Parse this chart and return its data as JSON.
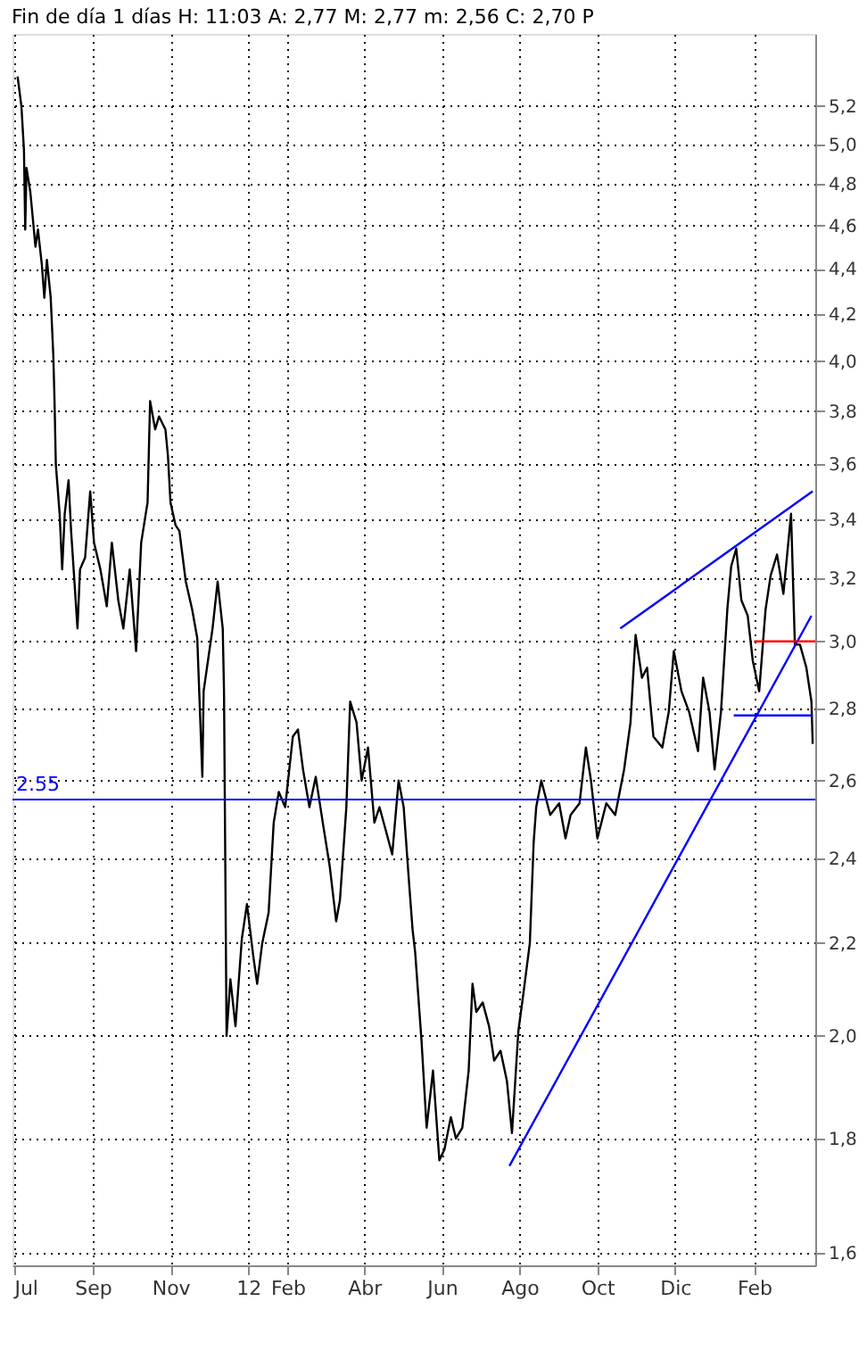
{
  "chart_data": {
    "type": "line",
    "title": "Fin de día 1 días  H: 11:03  A: 2,77  M: 2,77  m: 2,56  C: 2,70  P",
    "xlim": [
      "2011-06-30",
      "2013-03-21"
    ],
    "xticks": [
      {
        "value": "2011-07-01",
        "label": "Jul"
      },
      {
        "value": "2011-09-01",
        "label": "Sep"
      },
      {
        "value": "2011-11-01",
        "label": "Nov"
      },
      {
        "value": "2012-01-01",
        "label": "12"
      },
      {
        "value": "2012-02-01",
        "label": "Feb"
      },
      {
        "value": "2012-04-01",
        "label": "Abr"
      },
      {
        "value": "2012-06-01",
        "label": "Jun"
      },
      {
        "value": "2012-08-01",
        "label": "Ago"
      },
      {
        "value": "2012-10-01",
        "label": "Oct"
      },
      {
        "value": "2012-12-01",
        "label": "Dic"
      },
      {
        "value": "2013-02-01",
        "label": "Feb"
      }
    ],
    "ylim": [
      1.58,
      5.6
    ],
    "log": true,
    "yticks": [
      {
        "value": 1.6,
        "label": "1,6"
      },
      {
        "value": 1.8,
        "label": "1,8"
      },
      {
        "value": 2.0,
        "label": "2,0"
      },
      {
        "value": 2.2,
        "label": "2,2"
      },
      {
        "value": 2.4,
        "label": "2,4"
      },
      {
        "value": 2.6,
        "label": "2,6"
      },
      {
        "value": 2.8,
        "label": "2,8"
      },
      {
        "value": 3.0,
        "label": "3,0"
      },
      {
        "value": 3.2,
        "label": "3,2"
      },
      {
        "value": 3.4,
        "label": "3,4"
      },
      {
        "value": 3.6,
        "label": "3,6"
      },
      {
        "value": 3.8,
        "label": "3,8"
      },
      {
        "value": 4.0,
        "label": "4,0"
      },
      {
        "value": 4.2,
        "label": "4,2"
      },
      {
        "value": 4.4,
        "label": "4,4"
      },
      {
        "value": 4.6,
        "label": "4,6"
      },
      {
        "value": 4.8,
        "label": "4,8"
      },
      {
        "value": 5.0,
        "label": "5,0"
      },
      {
        "value": 5.2,
        "label": "5,2"
      }
    ],
    "grid": true,
    "line_style": "solid",
    "marker": "none",
    "ref_lines": [
      {
        "axis": "y",
        "value": 2.55,
        "label": "2.55",
        "color": "#0000ff"
      }
    ],
    "series": [
      {
        "color": "#000000",
        "x": [
          "2011-07-04",
          "2011-07-07",
          "2011-07-09",
          "2011-07-10",
          "2011-07-11",
          "2011-07-14",
          "2011-07-16",
          "2011-07-18",
          "2011-07-20",
          "2011-07-23",
          "2011-07-25",
          "2011-07-27",
          "2011-07-30",
          "2011-08-01",
          "2011-08-02",
          "2011-08-03",
          "2011-08-06",
          "2011-08-08",
          "2011-08-10",
          "2011-08-13",
          "2011-08-15",
          "2011-08-17",
          "2011-08-20",
          "2011-08-22",
          "2011-08-26",
          "2011-08-30",
          "2011-09-02",
          "2011-09-07",
          "2011-09-12",
          "2011-09-16",
          "2011-09-21",
          "2011-09-25",
          "2011-09-30",
          "2011-10-05",
          "2011-10-09",
          "2011-10-14",
          "2011-10-16",
          "2011-10-20",
          "2011-10-23",
          "2011-10-28",
          "2011-10-30",
          "2011-11-01",
          "2011-11-05",
          "2011-11-08",
          "2011-11-13",
          "2011-11-18",
          "2011-11-22",
          "2011-11-26",
          "2011-11-27",
          "2011-12-04",
          "2011-12-08",
          "2011-12-12",
          "2011-12-13",
          "2011-12-15",
          "2011-12-18",
          "2011-12-22",
          "2011-12-27",
          "2011-12-31",
          "2012-01-05",
          "2012-01-08",
          "2012-01-12",
          "2012-01-17",
          "2012-01-21",
          "2012-01-25",
          "2012-01-30",
          "2012-02-05",
          "2012-02-09",
          "2012-02-13",
          "2012-02-18",
          "2012-02-23",
          "2012-02-29",
          "2012-03-05",
          "2012-03-10",
          "2012-03-13",
          "2012-03-18",
          "2012-03-21",
          "2012-03-26",
          "2012-03-30",
          "2012-04-04",
          "2012-04-09",
          "2012-04-13",
          "2012-04-18",
          "2012-04-23",
          "2012-04-28",
          "2012-05-02",
          "2012-05-06",
          "2012-05-09",
          "2012-05-11",
          "2012-05-16",
          "2012-05-20",
          "2012-05-25",
          "2012-05-30",
          "2012-06-03",
          "2012-06-08",
          "2012-06-12",
          "2012-06-17",
          "2012-06-22",
          "2012-06-25",
          "2012-06-28",
          "2012-07-03",
          "2012-07-08",
          "2012-07-12",
          "2012-07-17",
          "2012-07-22",
          "2012-07-26",
          "2012-07-31",
          "2012-08-04",
          "2012-08-09",
          "2012-08-12",
          "2012-08-14",
          "2012-08-18",
          "2012-08-25",
          "2012-09-01",
          "2012-09-06",
          "2012-09-10",
          "2012-09-17",
          "2012-09-22",
          "2012-09-26",
          "2012-10-01",
          "2012-10-08",
          "2012-10-15",
          "2012-10-22",
          "2012-10-27",
          "2012-10-31",
          "2012-11-05",
          "2012-11-09",
          "2012-11-14",
          "2012-11-21",
          "2012-11-26",
          "2012-11-30",
          "2012-12-06",
          "2012-12-12",
          "2012-12-19",
          "2012-12-23",
          "2012-12-28",
          "2013-01-01",
          "2013-01-06",
          "2013-01-11",
          "2013-01-14",
          "2013-01-18",
          "2013-01-22",
          "2013-01-27",
          "2013-01-31",
          "2013-02-05",
          "2013-02-10",
          "2013-02-14",
          "2013-02-19",
          "2013-02-24",
          "2013-03-02",
          "2013-03-05",
          "2013-03-09",
          "2013-03-14",
          "2013-03-18",
          "2013-03-19"
        ],
        "values": [
          5.36,
          5.2,
          4.97,
          4.58,
          4.88,
          4.76,
          4.63,
          4.5,
          4.58,
          4.42,
          4.27,
          4.44,
          4.27,
          4.03,
          3.84,
          3.6,
          3.42,
          3.23,
          3.42,
          3.54,
          3.36,
          3.23,
          3.04,
          3.23,
          3.27,
          3.5,
          3.32,
          3.23,
          3.11,
          3.32,
          3.13,
          3.04,
          3.23,
          2.97,
          3.32,
          3.46,
          3.84,
          3.73,
          3.78,
          3.73,
          3.63,
          3.46,
          3.38,
          3.36,
          3.19,
          3.1,
          3.01,
          2.61,
          2.85,
          3.04,
          3.19,
          3.04,
          2.85,
          2.0,
          2.12,
          2.02,
          2.21,
          2.29,
          2.17,
          2.11,
          2.2,
          2.27,
          2.49,
          2.57,
          2.53,
          2.72,
          2.74,
          2.63,
          2.53,
          2.61,
          2.48,
          2.38,
          2.25,
          2.3,
          2.53,
          2.82,
          2.76,
          2.6,
          2.69,
          2.49,
          2.53,
          2.47,
          2.41,
          2.6,
          2.53,
          2.35,
          2.23,
          2.18,
          1.99,
          1.82,
          1.93,
          1.76,
          1.78,
          1.84,
          1.8,
          1.82,
          1.93,
          2.11,
          2.05,
          2.07,
          2.02,
          1.95,
          1.97,
          1.91,
          1.81,
          2.01,
          2.09,
          2.2,
          2.44,
          2.53,
          2.6,
          2.51,
          2.54,
          2.45,
          2.51,
          2.54,
          2.69,
          2.6,
          2.45,
          2.54,
          2.51,
          2.63,
          2.76,
          3.02,
          2.89,
          2.92,
          2.72,
          2.69,
          2.79,
          2.97,
          2.85,
          2.79,
          2.68,
          2.89,
          2.79,
          2.63,
          2.79,
          3.1,
          3.24,
          3.3,
          3.13,
          3.08,
          2.94,
          2.85,
          3.1,
          3.21,
          3.28,
          3.15,
          3.42,
          2.99,
          2.99,
          2.92,
          2.82,
          2.7
        ]
      },
      {
        "color": "#0000ff",
        "x": [
          "2012-07-24",
          "2013-03-18"
        ],
        "values": [
          1.75,
          3.08
        ]
      },
      {
        "color": "#0000ff",
        "x": [
          "2012-10-19",
          "2013-03-19"
        ],
        "values": [
          3.04,
          3.5
        ]
      },
      {
        "color": "#0000ff",
        "x": [
          "2013-01-16",
          "2013-03-19"
        ],
        "values": [
          2.78,
          2.78
        ]
      },
      {
        "color": "#ff0000",
        "x": [
          "2013-02-01",
          "2013-03-21"
        ],
        "values": [
          3.0,
          3.0
        ]
      }
    ]
  }
}
